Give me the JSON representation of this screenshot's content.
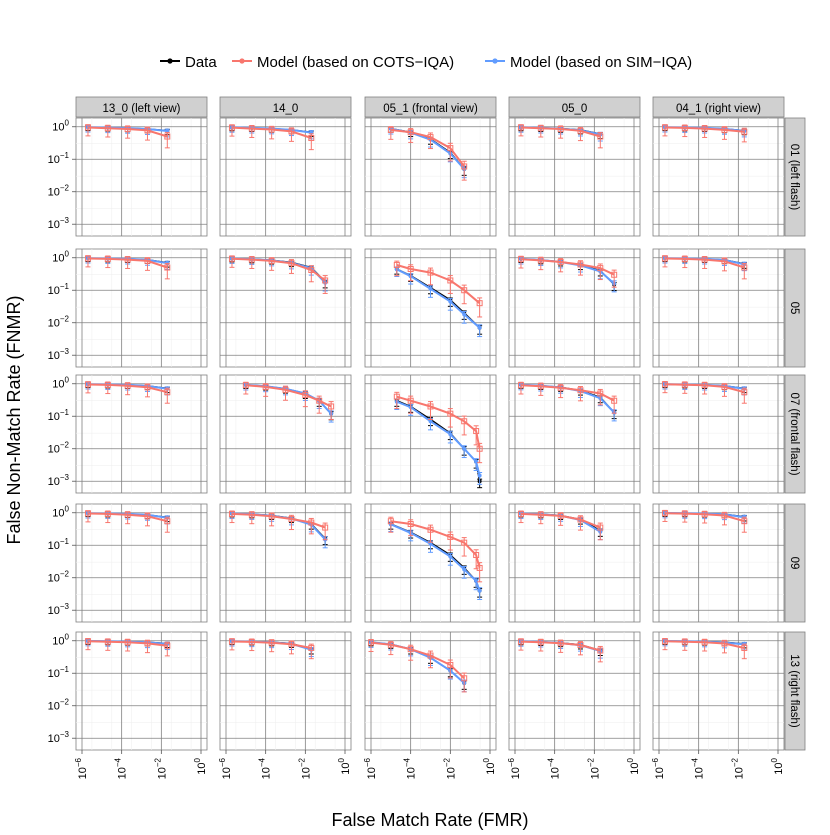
{
  "chart_data": {
    "type": "line",
    "xlabel": "False Match Rate (FMR)",
    "ylabel": "False Non-Match Rate (FNMR)",
    "x_scale": "log",
    "y_scale": "log",
    "xlim": [
      1e-06,
      1
    ],
    "ylim": [
      0.0005,
      1.4
    ],
    "x_ticks": [
      {
        "value": 1e-06,
        "label": "10",
        "exp": "−6"
      },
      {
        "value": 0.0001,
        "label": "10",
        "exp": "−4"
      },
      {
        "value": 0.01,
        "label": "10",
        "exp": "−2"
      },
      {
        "value": 1,
        "label": "10",
        "exp": "0"
      }
    ],
    "y_ticks": [
      {
        "value": 1,
        "label": "10",
        "exp": "0"
      },
      {
        "value": 0.1,
        "label": "10",
        "exp": "−1"
      },
      {
        "value": 0.01,
        "label": "10",
        "exp": "−2"
      },
      {
        "value": 0.001,
        "label": "10",
        "exp": "−3"
      }
    ],
    "grid": true,
    "legend_position": "top",
    "colors": {
      "data": "#000000",
      "cots": "#F8766D",
      "sim": "#619CFF"
    },
    "legend": [
      {
        "key": "data",
        "label": "Data"
      },
      {
        "key": "cots",
        "label": "Model (based on COTS−IQA)"
      },
      {
        "key": "sim",
        "label": "Model (based on SIM−IQA)"
      }
    ],
    "columns": [
      "13_0 (left view)",
      "14_0",
      "05_1 (frontal view)",
      "05_0",
      "04_1 (right view)"
    ],
    "rows": [
      "01 (left flash)",
      "05",
      "07 (frontal flash)",
      "09",
      "13 (right flash)"
    ],
    "panels": [
      [
        {
          "x": [
            2e-06,
            2e-05,
            0.0002,
            0.002,
            0.02
          ],
          "data": [
            0.97,
            0.94,
            0.91,
            0.85,
            0.76
          ],
          "sim": [
            0.97,
            0.94,
            0.91,
            0.85,
            0.74
          ],
          "cots": [
            0.95,
            0.9,
            0.85,
            0.77,
            0.5
          ]
        },
        {
          "x": [
            2e-06,
            2e-05,
            0.0002,
            0.002,
            0.02
          ],
          "data": [
            0.96,
            0.92,
            0.88,
            0.8,
            0.68
          ],
          "sim": [
            0.96,
            0.92,
            0.88,
            0.8,
            0.66
          ],
          "cots": [
            0.94,
            0.88,
            0.82,
            0.72,
            0.45
          ]
        },
        {
          "x": [
            1e-05,
            0.0001,
            0.001,
            0.01,
            0.05
          ],
          "data": [
            0.88,
            0.68,
            0.42,
            0.16,
            0.05
          ],
          "sim": [
            0.87,
            0.66,
            0.4,
            0.15,
            0.05
          ],
          "cots": [
            0.8,
            0.68,
            0.48,
            0.22,
            0.06
          ]
        },
        {
          "x": [
            2e-06,
            2e-05,
            0.0002,
            0.002,
            0.02
          ],
          "data": [
            0.96,
            0.92,
            0.88,
            0.8,
            0.6
          ],
          "sim": [
            0.96,
            0.92,
            0.87,
            0.78,
            0.58
          ],
          "cots": [
            0.95,
            0.9,
            0.85,
            0.75,
            0.5
          ]
        },
        {
          "x": [
            2e-06,
            2e-05,
            0.0002,
            0.002,
            0.02
          ],
          "data": [
            0.97,
            0.95,
            0.92,
            0.86,
            0.76
          ],
          "sim": [
            0.97,
            0.95,
            0.92,
            0.86,
            0.74
          ],
          "cots": [
            0.95,
            0.92,
            0.88,
            0.8,
            0.7
          ]
        }
      ],
      [
        {
          "x": [
            2e-06,
            2e-05,
            0.0002,
            0.002,
            0.02
          ],
          "data": [
            0.97,
            0.95,
            0.92,
            0.87,
            0.7
          ],
          "sim": [
            0.97,
            0.95,
            0.92,
            0.86,
            0.68
          ],
          "cots": [
            0.95,
            0.92,
            0.88,
            0.8,
            0.5
          ]
        },
        {
          "x": [
            2e-06,
            2e-05,
            0.0002,
            0.002,
            0.02,
            0.1
          ],
          "data": [
            0.95,
            0.9,
            0.84,
            0.72,
            0.5,
            0.18
          ],
          "sim": [
            0.95,
            0.9,
            0.83,
            0.7,
            0.48,
            0.17
          ],
          "cots": [
            0.93,
            0.88,
            0.8,
            0.68,
            0.42,
            0.2
          ]
        },
        {
          "x": [
            2e-05,
            0.0001,
            0.001,
            0.01,
            0.05,
            0.3
          ],
          "data": [
            0.45,
            0.28,
            0.12,
            0.05,
            0.02,
            0.007
          ],
          "sim": [
            0.44,
            0.27,
            0.11,
            0.045,
            0.018,
            0.007
          ],
          "cots": [
            0.6,
            0.45,
            0.35,
            0.2,
            0.1,
            0.04
          ]
        },
        {
          "x": [
            2e-06,
            2e-05,
            0.0002,
            0.002,
            0.02,
            0.1
          ],
          "data": [
            0.92,
            0.85,
            0.75,
            0.6,
            0.4,
            0.15
          ],
          "sim": [
            0.92,
            0.85,
            0.74,
            0.58,
            0.38,
            0.16
          ],
          "cots": [
            0.9,
            0.83,
            0.74,
            0.62,
            0.48,
            0.3
          ]
        },
        {
          "x": [
            2e-06,
            2e-05,
            0.0002,
            0.002,
            0.02
          ],
          "data": [
            0.97,
            0.95,
            0.92,
            0.86,
            0.65
          ],
          "sim": [
            0.97,
            0.95,
            0.92,
            0.85,
            0.63
          ],
          "cots": [
            0.95,
            0.92,
            0.88,
            0.78,
            0.5
          ]
        }
      ],
      [
        {
          "x": [
            2e-06,
            2e-05,
            0.0002,
            0.002,
            0.02
          ],
          "data": [
            0.97,
            0.95,
            0.92,
            0.86,
            0.72
          ],
          "sim": [
            0.97,
            0.95,
            0.92,
            0.85,
            0.7
          ],
          "cots": [
            0.95,
            0.92,
            0.87,
            0.78,
            0.55
          ]
        },
        {
          "x": [
            1e-05,
            0.0001,
            0.001,
            0.01,
            0.05,
            0.2
          ],
          "data": [
            0.92,
            0.84,
            0.7,
            0.5,
            0.3,
            0.12
          ],
          "sim": [
            0.92,
            0.84,
            0.7,
            0.5,
            0.3,
            0.12
          ],
          "cots": [
            0.9,
            0.8,
            0.65,
            0.45,
            0.3,
            0.2
          ]
        },
        {
          "x": [
            2e-05,
            0.0001,
            0.001,
            0.01,
            0.05,
            0.2,
            0.3
          ],
          "data": [
            0.3,
            0.2,
            0.08,
            0.03,
            0.01,
            0.004,
            0.001
          ],
          "sim": [
            0.28,
            0.19,
            0.07,
            0.028,
            0.01,
            0.004,
            0.0015
          ],
          "cots": [
            0.4,
            0.3,
            0.2,
            0.12,
            0.07,
            0.035,
            0.01
          ]
        },
        {
          "x": [
            2e-06,
            2e-05,
            0.0002,
            0.002,
            0.02,
            0.1
          ],
          "data": [
            0.93,
            0.87,
            0.78,
            0.62,
            0.38,
            0.13
          ],
          "sim": [
            0.93,
            0.87,
            0.77,
            0.6,
            0.36,
            0.13
          ],
          "cots": [
            0.9,
            0.84,
            0.75,
            0.63,
            0.5,
            0.3
          ]
        },
        {
          "x": [
            2e-06,
            2e-05,
            0.0002,
            0.002,
            0.02
          ],
          "data": [
            0.97,
            0.95,
            0.92,
            0.86,
            0.72
          ],
          "sim": [
            0.97,
            0.95,
            0.92,
            0.85,
            0.7
          ],
          "cots": [
            0.96,
            0.93,
            0.9,
            0.8,
            0.55
          ]
        }
      ],
      [
        {
          "x": [
            2e-06,
            2e-05,
            0.0002,
            0.002,
            0.02
          ],
          "data": [
            0.97,
            0.95,
            0.92,
            0.86,
            0.72
          ],
          "sim": [
            0.97,
            0.95,
            0.92,
            0.86,
            0.7
          ],
          "cots": [
            0.95,
            0.92,
            0.87,
            0.78,
            0.55
          ]
        },
        {
          "x": [
            2e-06,
            2e-05,
            0.0002,
            0.002,
            0.02,
            0.1
          ],
          "data": [
            0.95,
            0.9,
            0.82,
            0.68,
            0.45,
            0.16
          ],
          "sim": [
            0.95,
            0.9,
            0.81,
            0.66,
            0.43,
            0.15
          ],
          "cots": [
            0.92,
            0.87,
            0.78,
            0.64,
            0.5,
            0.35
          ]
        },
        {
          "x": [
            1e-05,
            0.0001,
            0.001,
            0.01,
            0.05,
            0.2,
            0.3
          ],
          "data": [
            0.45,
            0.25,
            0.12,
            0.05,
            0.02,
            0.008,
            0.004
          ],
          "sim": [
            0.44,
            0.24,
            0.11,
            0.045,
            0.018,
            0.008,
            0.004
          ],
          "cots": [
            0.55,
            0.45,
            0.3,
            0.18,
            0.12,
            0.05,
            0.02
          ]
        },
        {
          "x": [
            2e-06,
            2e-05,
            0.0002,
            0.002,
            0.02
          ],
          "data": [
            0.95,
            0.9,
            0.82,
            0.62,
            0.28
          ],
          "sim": [
            0.95,
            0.9,
            0.81,
            0.6,
            0.26
          ],
          "cots": [
            0.92,
            0.87,
            0.8,
            0.62,
            0.35
          ]
        },
        {
          "x": [
            2e-06,
            2e-05,
            0.0002,
            0.002,
            0.02
          ],
          "data": [
            0.98,
            0.96,
            0.94,
            0.9,
            0.75
          ],
          "sim": [
            0.98,
            0.96,
            0.94,
            0.89,
            0.73
          ],
          "cots": [
            0.97,
            0.94,
            0.9,
            0.82,
            0.55
          ]
        }
      ],
      [
        {
          "x": [
            2e-06,
            2e-05,
            0.0002,
            0.002,
            0.02
          ],
          "data": [
            0.98,
            0.96,
            0.94,
            0.9,
            0.82
          ],
          "sim": [
            0.98,
            0.96,
            0.93,
            0.89,
            0.8
          ],
          "cots": [
            0.96,
            0.93,
            0.9,
            0.83,
            0.7
          ]
        },
        {
          "x": [
            2e-06,
            2e-05,
            0.0002,
            0.002,
            0.02
          ],
          "data": [
            0.97,
            0.95,
            0.9,
            0.82,
            0.55
          ],
          "sim": [
            0.97,
            0.94,
            0.89,
            0.8,
            0.53
          ],
          "cots": [
            0.95,
            0.92,
            0.87,
            0.78,
            0.6
          ]
        },
        {
          "x": [
            1e-06,
            1e-05,
            0.0001,
            0.001,
            0.01,
            0.05
          ],
          "data": [
            0.9,
            0.78,
            0.55,
            0.3,
            0.12,
            0.05
          ],
          "sim": [
            0.9,
            0.78,
            0.55,
            0.3,
            0.12,
            0.05
          ],
          "cots": [
            0.88,
            0.75,
            0.55,
            0.35,
            0.18,
            0.07
          ]
        },
        {
          "x": [
            2e-06,
            2e-05,
            0.0002,
            0.002,
            0.02
          ],
          "data": [
            0.96,
            0.92,
            0.86,
            0.75,
            0.5
          ],
          "sim": [
            0.96,
            0.92,
            0.85,
            0.73,
            0.48
          ],
          "cots": [
            0.94,
            0.9,
            0.84,
            0.74,
            0.5
          ]
        },
        {
          "x": [
            2e-06,
            2e-05,
            0.0002,
            0.002,
            0.02
          ],
          "data": [
            0.98,
            0.96,
            0.94,
            0.9,
            0.8
          ],
          "sim": [
            0.98,
            0.96,
            0.93,
            0.88,
            0.78
          ],
          "cots": [
            0.96,
            0.93,
            0.9,
            0.82,
            0.6
          ]
        }
      ]
    ]
  }
}
